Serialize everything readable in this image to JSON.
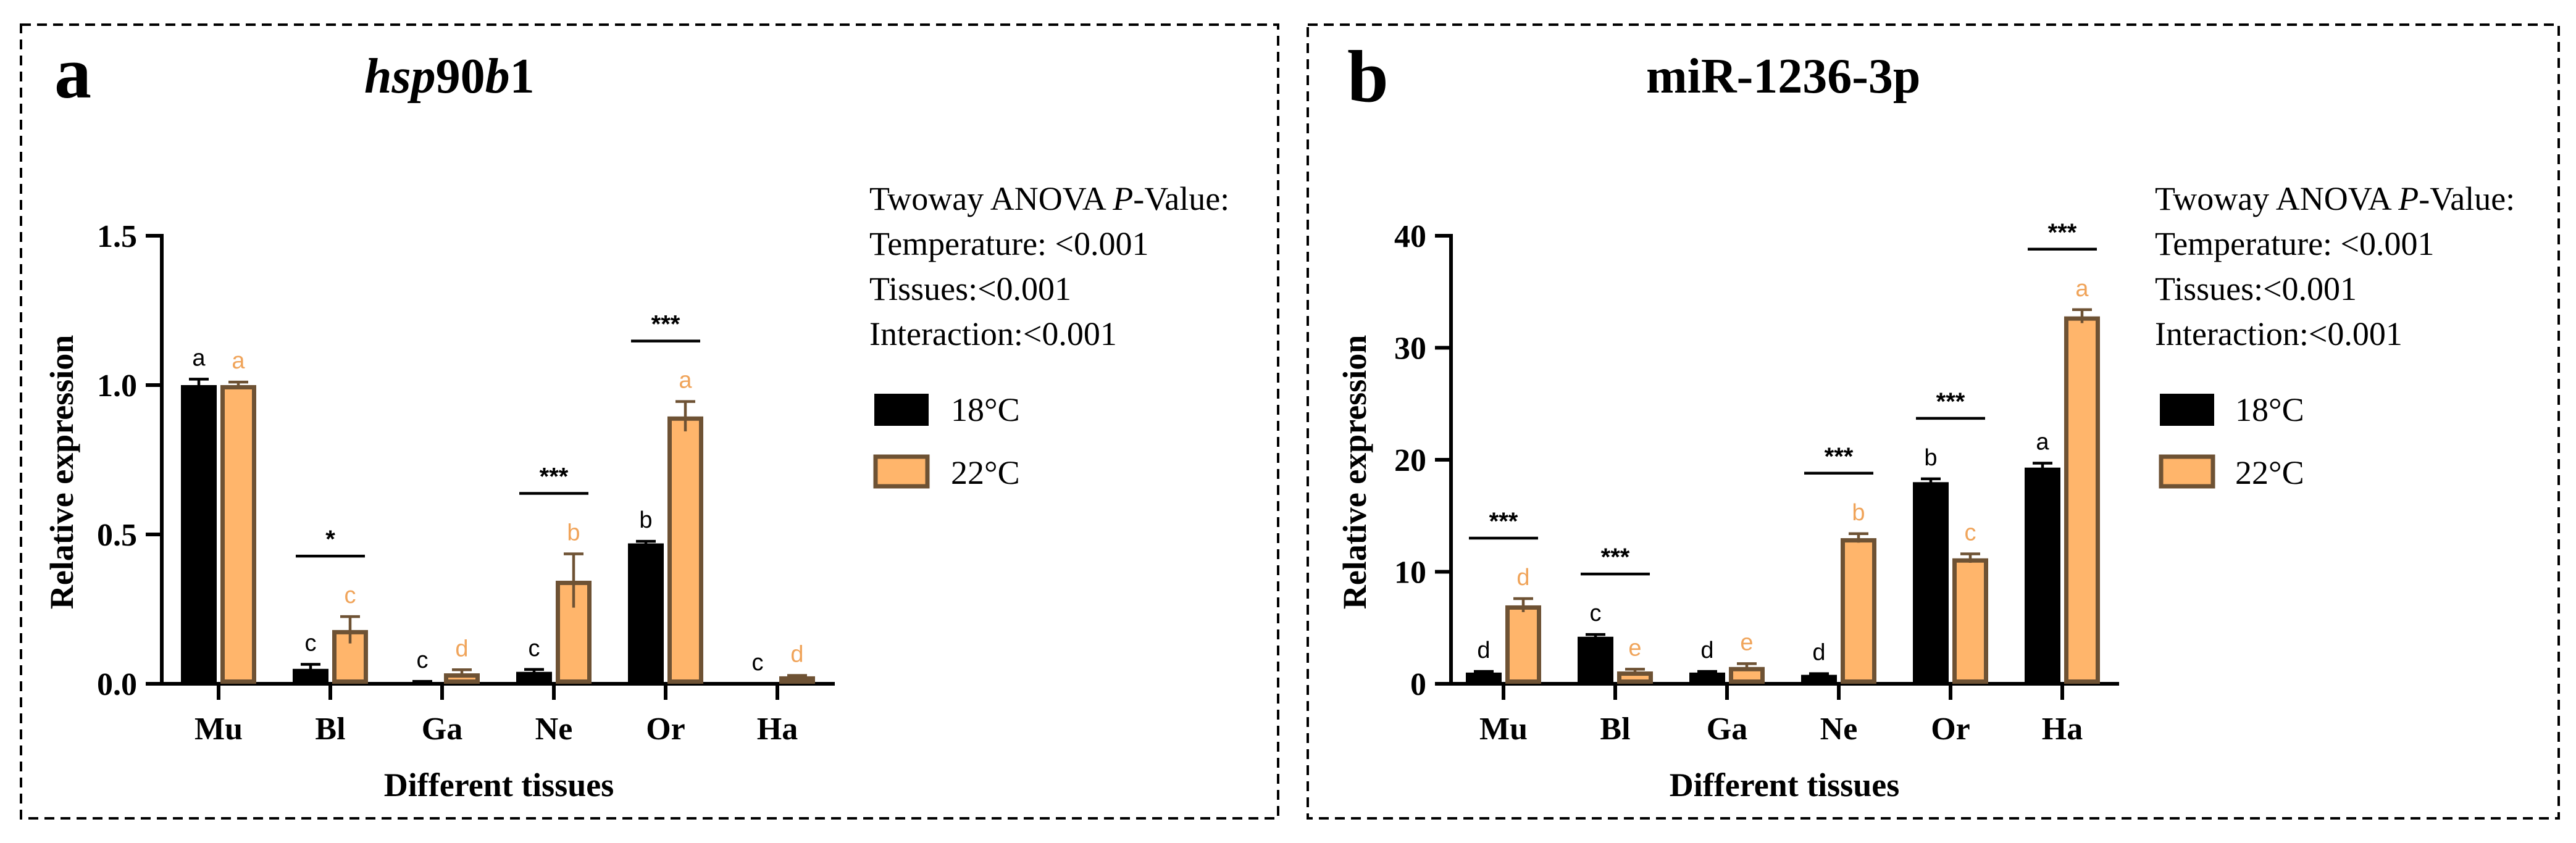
{
  "colors": {
    "c18": "#000000",
    "c22_fill": "#ffb56b",
    "c22_stroke": "#6e5234",
    "letter22": "#f0a45a",
    "letter18": "#000000"
  },
  "chart_data": [
    {
      "type": "bar",
      "panel_label": "a",
      "title_parts": [
        {
          "text": "hsp",
          "italic": true
        },
        {
          "text": "90",
          "italic": false
        },
        {
          "text": "b",
          "italic": true
        },
        {
          "text": "1",
          "italic": false
        }
      ],
      "xlabel": "Different tissues",
      "ylabel": "Relative expression",
      "ylim": [
        0,
        1.5
      ],
      "yticks": [
        0.0,
        0.5,
        1.0,
        1.5
      ],
      "ytick_labels": [
        "0.0",
        "0.5",
        "1.0",
        "1.5"
      ],
      "categories": [
        "Mu",
        "Bl",
        "Ga",
        "Ne",
        "Or",
        "Ha"
      ],
      "series": [
        {
          "name": "18°C",
          "values": [
            1.0,
            0.05,
            0.005,
            0.04,
            0.47,
            0.0
          ],
          "errors": [
            0.02,
            0.015,
            0.003,
            0.008,
            0.007,
            0.0
          ],
          "letters": [
            "a",
            "c",
            "c",
            "c",
            "b",
            "c"
          ]
        },
        {
          "name": "22°C",
          "values": [
            1.0,
            0.18,
            0.035,
            0.345,
            0.895,
            0.025
          ],
          "errors": [
            0.01,
            0.045,
            0.012,
            0.09,
            0.05,
            0.003
          ],
          "letters": [
            "a",
            "c",
            "d",
            "b",
            "a",
            "d"
          ]
        }
      ],
      "significance": [
        "",
        "*",
        "",
        "***",
        "***",
        ""
      ],
      "anova": {
        "heading_before": "Twoway ANOVA ",
        "heading_italic": "P",
        "heading_after": "-Value:",
        "lines": [
          "Temperature: <0.001",
          "Tissues:<0.001",
          "Interaction:<0.001"
        ]
      },
      "legend": [
        "18°C",
        "22°C"
      ]
    },
    {
      "type": "bar",
      "panel_label": "b",
      "title_parts": [
        {
          "text": "miR-1236-3p",
          "italic": false
        }
      ],
      "xlabel": "Different tissues",
      "ylabel": "Relative expression",
      "ylim": [
        0,
        40
      ],
      "yticks": [
        0,
        10,
        20,
        30,
        40
      ],
      "ytick_labels": [
        "0",
        "10",
        "20",
        "30",
        "40"
      ],
      "categories": [
        "Mu",
        "Bl",
        "Ga",
        "Ne",
        "Or",
        "Ha"
      ],
      "series": [
        {
          "name": "18°C",
          "values": [
            1.0,
            4.2,
            1.0,
            0.8,
            18.0,
            19.3
          ],
          "errors": [
            0.1,
            0.2,
            0.1,
            0.1,
            0.3,
            0.4
          ],
          "letters": [
            "d",
            "c",
            "d",
            "d",
            "b",
            "a"
          ]
        },
        {
          "name": "22°C",
          "values": [
            7.0,
            1.1,
            1.5,
            13.0,
            11.2,
            32.8
          ],
          "errors": [
            0.6,
            0.2,
            0.3,
            0.4,
            0.4,
            0.6
          ],
          "letters": [
            "d",
            "e",
            "e",
            "b",
            "c",
            "a"
          ]
        }
      ],
      "significance": [
        "***",
        "***",
        "",
        "***",
        "***",
        "***"
      ],
      "anova": {
        "heading_before": "Twoway ANOVA ",
        "heading_italic": "P",
        "heading_after": "-Value:",
        "lines": [
          "Temperature: <0.001",
          "Tissues:<0.001",
          "Interaction:<0.001"
        ]
      },
      "legend": [
        "18°C",
        "22°C"
      ]
    }
  ]
}
